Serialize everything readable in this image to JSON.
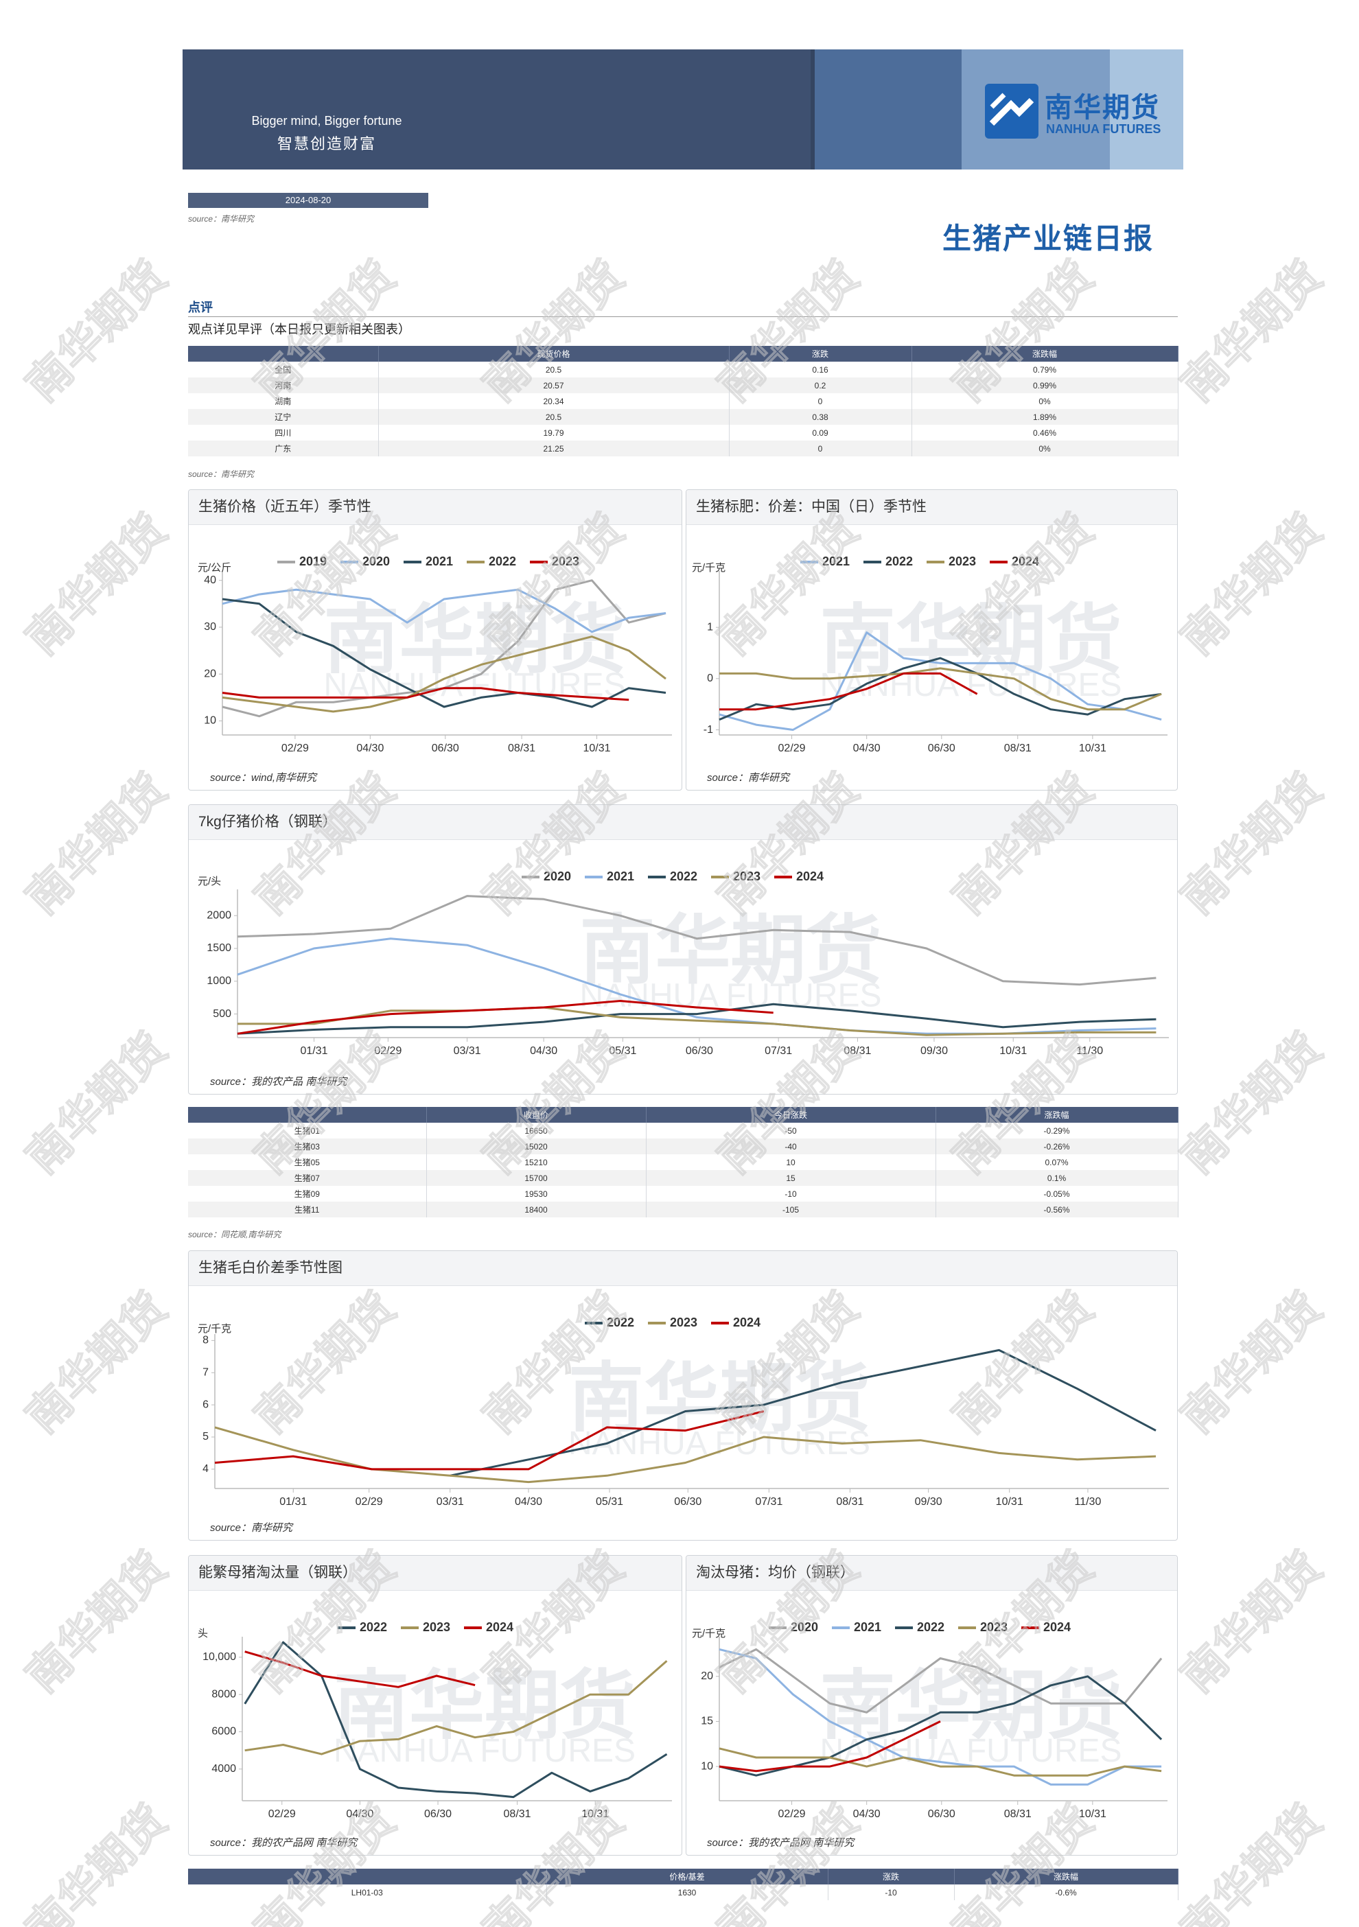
{
  "watermark": "南华期货",
  "header": {
    "slogan_en": "Bigger mind, Bigger fortune",
    "slogan_cn": "智慧创造财富",
    "logo_cn": "南华期货",
    "logo_en": "NANHUA FUTURES"
  },
  "date": "2024-08-20",
  "date_source": "source：南华研究",
  "title": "生猪产业链日报",
  "comment": {
    "heading": "点评",
    "text": "观点详见早评（本日报只更新相关图表）"
  },
  "spot_table": {
    "columns": [
      "现货价格",
      "涨跌",
      "涨跌幅"
    ],
    "rows": [
      [
        "全国",
        "20.5",
        "0.16",
        "0.79%"
      ],
      [
        "河南",
        "20.57",
        "0.2",
        "0.99%"
      ],
      [
        "湖南",
        "20.34",
        "0",
        "0%"
      ],
      [
        "辽宁",
        "20.5",
        "0.38",
        "1.89%"
      ],
      [
        "四川",
        "19.79",
        "0.09",
        "0.46%"
      ],
      [
        "广东",
        "21.25",
        "0",
        "0%"
      ]
    ],
    "source": "source：南华研究"
  },
  "futures_table": {
    "columns": [
      "收盘价",
      "今日涨跌",
      "涨跌幅"
    ],
    "rows": [
      [
        "生猪01",
        "16650",
        "-50",
        "-0.29%"
      ],
      [
        "生猪03",
        "15020",
        "-40",
        "-0.26%"
      ],
      [
        "生猪05",
        "15210",
        "10",
        "0.07%"
      ],
      [
        "生猪07",
        "15700",
        "15",
        "0.1%"
      ],
      [
        "生猪09",
        "19530",
        "-10",
        "-0.05%"
      ],
      [
        "生猪11",
        "18400",
        "-105",
        "-0.56%"
      ]
    ],
    "source": "source：同花顺,南华研究"
  },
  "spread_table": {
    "columns": [
      "价格/基差",
      "涨跌",
      "涨跌幅"
    ],
    "rows": [
      [
        "LH01-03",
        "1630",
        "-10",
        "-0.6%"
      ]
    ]
  },
  "chart_data": [
    {
      "type": "line",
      "title": "生猪价格（近五年）季节性",
      "y_label": "元/公斤",
      "source": "source：wind,南华研究",
      "x": [
        1,
        31,
        61,
        91,
        121,
        151,
        181,
        211,
        241,
        271,
        301,
        331,
        361
      ],
      "xlim": [
        1,
        366
      ],
      "xticks": [
        {
          "value": 60,
          "label": "02/29"
        },
        {
          "value": 121,
          "label": "04/30"
        },
        {
          "value": 182,
          "label": "06/30"
        },
        {
          "value": 244,
          "label": "08/31"
        },
        {
          "value": 305,
          "label": "10/31"
        }
      ],
      "ylim": [
        7,
        42
      ],
      "yticks": [
        10,
        20,
        30,
        40
      ],
      "series": [
        {
          "name": "2019",
          "color": "#a5a5a5",
          "values": [
            13,
            11,
            14,
            14,
            15,
            16,
            17,
            20,
            27,
            38,
            40,
            31,
            33
          ]
        },
        {
          "name": "2020",
          "color": "#8db3e2",
          "values": [
            35,
            37,
            38,
            37,
            36,
            31,
            36,
            37,
            38,
            34,
            29,
            32,
            33
          ]
        },
        {
          "name": "2021",
          "color": "#2e4e5e",
          "values": [
            36,
            35,
            29,
            26,
            21,
            17,
            13,
            15,
            16,
            15,
            13,
            17,
            16
          ]
        },
        {
          "name": "2022",
          "color": "#a49458",
          "values": [
            15,
            14,
            13,
            12,
            13,
            15,
            19,
            22,
            24,
            26,
            28,
            25,
            19
          ]
        },
        {
          "name": "2023",
          "color": "#c00000",
          "values": [
            16,
            15,
            15,
            15,
            15,
            15,
            17,
            17,
            16,
            15.5,
            15,
            14.5,
            null
          ]
        }
      ]
    },
    {
      "type": "line",
      "title": "生猪标肥：价差：中国（日）季节性",
      "y_label": "元/千克",
      "source": "source：南华研究",
      "x": [
        1,
        31,
        61,
        91,
        121,
        151,
        181,
        211,
        241,
        271,
        301,
        331,
        361
      ],
      "xlim": [
        1,
        366
      ],
      "xticks": [
        {
          "value": 60,
          "label": "02/29"
        },
        {
          "value": 121,
          "label": "04/30"
        },
        {
          "value": 182,
          "label": "06/30"
        },
        {
          "value": 244,
          "label": "08/31"
        },
        {
          "value": 305,
          "label": "10/31"
        }
      ],
      "ylim": [
        -1.1,
        2.1
      ],
      "yticks": [
        -1,
        0,
        1
      ],
      "series": [
        {
          "name": "2021",
          "color": "#8db3e2",
          "values": [
            -0.7,
            -0.9,
            -1,
            -0.6,
            0.9,
            0.4,
            0.3,
            0.3,
            0.3,
            0,
            -0.5,
            -0.6,
            -0.8
          ]
        },
        {
          "name": "2022",
          "color": "#2e4e5e",
          "values": [
            -0.8,
            -0.5,
            -0.6,
            -0.5,
            -0.1,
            0.2,
            0.4,
            0.1,
            -0.3,
            -0.6,
            -0.7,
            -0.4,
            -0.3
          ]
        },
        {
          "name": "2023",
          "color": "#a49458",
          "values": [
            0.1,
            0.1,
            0,
            0,
            0.05,
            0.1,
            0.2,
            0.1,
            0,
            -0.4,
            -0.6,
            -0.6,
            -0.3
          ]
        },
        {
          "name": "2024",
          "color": "#c00000",
          "values": [
            -0.6,
            -0.6,
            -0.5,
            -0.4,
            -0.2,
            0.1,
            0.1,
            -0.3,
            null,
            null,
            null,
            null,
            null
          ]
        }
      ]
    },
    {
      "type": "line",
      "title": "7kg仔猪价格（钢联）",
      "y_label": "元/头",
      "source": "source：我的农产品 南华研究",
      "x": [
        1,
        31,
        61,
        91,
        121,
        151,
        181,
        211,
        241,
        271,
        301,
        331,
        361
      ],
      "xlim": [
        1,
        366
      ],
      "xticks": [
        {
          "value": 31,
          "label": "01/31"
        },
        {
          "value": 60,
          "label": "02/29"
        },
        {
          "value": 91,
          "label": "03/31"
        },
        {
          "value": 121,
          "label": "04/30"
        },
        {
          "value": 152,
          "label": "05/31"
        },
        {
          "value": 182,
          "label": "06/30"
        },
        {
          "value": 213,
          "label": "07/31"
        },
        {
          "value": 244,
          "label": "08/31"
        },
        {
          "value": 274,
          "label": "09/30"
        },
        {
          "value": 305,
          "label": "10/31"
        },
        {
          "value": 335,
          "label": "11/30"
        }
      ],
      "ylim": [
        140,
        2400
      ],
      "yticks": [
        500,
        1000,
        1500,
        2000
      ],
      "series": [
        {
          "name": "2020",
          "color": "#a5a5a5",
          "values": [
            1680,
            1720,
            1800,
            2300,
            2250,
            2000,
            1650,
            1780,
            1750,
            1500,
            1000,
            950,
            1050
          ]
        },
        {
          "name": "2021",
          "color": "#8db3e2",
          "values": [
            1100,
            1500,
            1650,
            1550,
            1200,
            800,
            450,
            350,
            250,
            200,
            200,
            250,
            280
          ]
        },
        {
          "name": "2022",
          "color": "#2e4e5e",
          "values": [
            200,
            260,
            300,
            300,
            380,
            500,
            500,
            650,
            550,
            430,
            300,
            380,
            420
          ]
        },
        {
          "name": "2023",
          "color": "#a49458",
          "values": [
            350,
            350,
            550,
            550,
            600,
            450,
            400,
            350,
            250,
            180,
            200,
            220,
            220
          ]
        },
        {
          "name": "2024",
          "color": "#c00000",
          "values": [
            200,
            380,
            500,
            550,
            600,
            700,
            600,
            520,
            null,
            null,
            null,
            null,
            null
          ]
        }
      ]
    },
    {
      "type": "line",
      "title": "生猪毛白价差季节性图",
      "y_label": "元/千克",
      "source": "source：南华研究",
      "x": [
        1,
        31,
        61,
        91,
        121,
        151,
        181,
        211,
        241,
        271,
        301,
        331,
        361
      ],
      "xlim": [
        1,
        366
      ],
      "xticks": [
        {
          "value": 31,
          "label": "01/31"
        },
        {
          "value": 60,
          "label": "02/29"
        },
        {
          "value": 91,
          "label": "03/31"
        },
        {
          "value": 121,
          "label": "04/30"
        },
        {
          "value": 152,
          "label": "05/31"
        },
        {
          "value": 182,
          "label": "06/30"
        },
        {
          "value": 213,
          "label": "07/31"
        },
        {
          "value": 244,
          "label": "08/31"
        },
        {
          "value": 274,
          "label": "09/30"
        },
        {
          "value": 305,
          "label": "10/31"
        },
        {
          "value": 335,
          "label": "11/30"
        }
      ],
      "ylim": [
        3.4,
        8.2
      ],
      "yticks": [
        4,
        5,
        6,
        7,
        8
      ],
      "series": [
        {
          "name": "2022",
          "color": "#2e4e5e",
          "values": [
            null,
            null,
            null,
            3.8,
            4.3,
            4.8,
            5.8,
            6.0,
            6.7,
            7.2,
            7.7,
            6.5,
            5.2
          ]
        },
        {
          "name": "2023",
          "color": "#a49458",
          "values": [
            5.3,
            4.6,
            4.0,
            3.8,
            3.6,
            3.8,
            4.2,
            5.0,
            4.8,
            4.9,
            4.5,
            4.3,
            4.4
          ]
        },
        {
          "name": "2024",
          "color": "#c00000",
          "values": [
            4.2,
            4.4,
            4.0,
            4.0,
            4.0,
            5.3,
            5.2,
            5.8,
            null,
            null,
            null,
            null,
            null
          ]
        }
      ]
    },
    {
      "type": "line",
      "title": "能繁母猪淘汰量（钢联）",
      "y_label": "头",
      "source": "source：我的农产品网 南华研究",
      "x": [
        31,
        61,
        91,
        121,
        151,
        181,
        211,
        241,
        271,
        301,
        331,
        361
      ],
      "xlim": [
        29,
        365
      ],
      "xticks": [
        {
          "value": 60,
          "label": "02/29"
        },
        {
          "value": 121,
          "label": "04/30"
        },
        {
          "value": 182,
          "label": "06/30"
        },
        {
          "value": 244,
          "label": "08/31"
        },
        {
          "value": 305,
          "label": "10/31"
        }
      ],
      "ylim": [
        2300,
        11100
      ],
      "yticks": [
        4000,
        6000,
        8000,
        {
          "value": 10000,
          "label": "10,000"
        }
      ],
      "series": [
        {
          "name": "2022",
          "color": "#2e4e5e",
          "values": [
            7500,
            10800,
            9000,
            4000,
            3000,
            2800,
            2700,
            2500,
            3800,
            2800,
            3500,
            4800
          ]
        },
        {
          "name": "2023",
          "color": "#a49458",
          "values": [
            5000,
            5300,
            4800,
            5500,
            5600,
            6300,
            5700,
            6000,
            7000,
            8000,
            8000,
            9800
          ]
        },
        {
          "name": "2024",
          "color": "#c00000",
          "values": [
            10300,
            9700,
            9000,
            8700,
            8400,
            9000,
            8500,
            null,
            null,
            null,
            null,
            null
          ]
        }
      ]
    },
    {
      "type": "line",
      "title": "淘汰母猪：均价（钢联）",
      "y_label": "元/千克",
      "source": "source：我的农产品网 南华研究",
      "x": [
        1,
        31,
        61,
        91,
        121,
        151,
        181,
        211,
        241,
        271,
        301,
        331,
        361
      ],
      "xlim": [
        1,
        366
      ],
      "xticks": [
        {
          "value": 60,
          "label": "02/29"
        },
        {
          "value": 121,
          "label": "04/30"
        },
        {
          "value": 182,
          "label": "06/30"
        },
        {
          "value": 244,
          "label": "08/31"
        },
        {
          "value": 305,
          "label": "10/31"
        }
      ],
      "ylim": [
        6.2,
        24.4
      ],
      "yticks": [
        10,
        15,
        20
      ],
      "series": [
        {
          "name": "2020",
          "color": "#a5a5a5",
          "values": [
            21,
            23,
            20,
            17,
            16,
            19,
            22,
            21,
            19,
            17,
            17,
            17,
            22
          ]
        },
        {
          "name": "2021",
          "color": "#8db3e2",
          "values": [
            23,
            22,
            18,
            15,
            13,
            11,
            10.5,
            10,
            10,
            8,
            8,
            10,
            10
          ]
        },
        {
          "name": "2022",
          "color": "#2e4e5e",
          "values": [
            10,
            9,
            10,
            11,
            13,
            14,
            16,
            16,
            17,
            19,
            20,
            17,
            13
          ]
        },
        {
          "name": "2023",
          "color": "#a49458",
          "values": [
            12,
            11,
            11,
            11,
            10,
            11,
            10,
            10,
            9,
            9,
            9,
            10,
            9.5
          ]
        },
        {
          "name": "2024",
          "color": "#c00000",
          "values": [
            10,
            9.5,
            10,
            10,
            11,
            13,
            15,
            null,
            null,
            null,
            null,
            null,
            null
          ]
        }
      ]
    }
  ]
}
